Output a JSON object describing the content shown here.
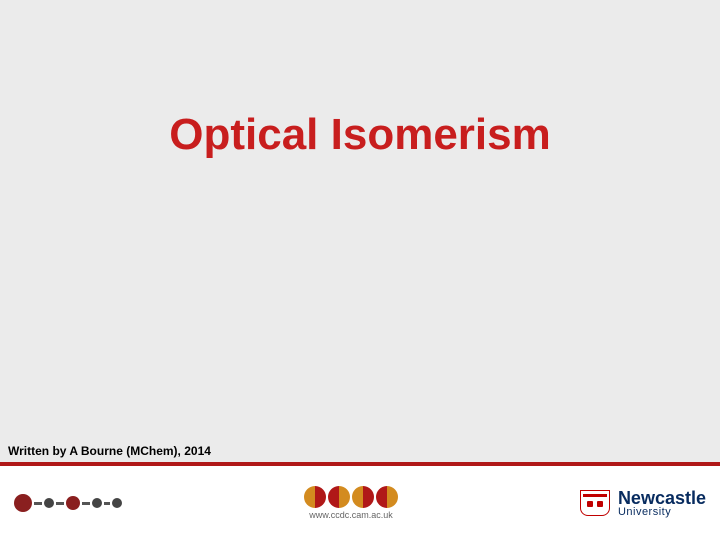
{
  "slide": {
    "background_color": "#ebebeb",
    "title": {
      "text": "Optical Isomerism",
      "color": "#c81e1e",
      "fontsize": 44,
      "font_weight": "bold"
    },
    "author_line": {
      "text": "Written by A Bourne (MChem), 2014",
      "color": "#000000",
      "fontsize": 12,
      "font_weight": "bold"
    },
    "divider_color": "#b01818"
  },
  "footer": {
    "background_color": "#ffffff",
    "molecule_logo": {
      "atoms": [
        {
          "color": "#8a1f1f",
          "size": 18
        },
        {
          "color": "#444444",
          "size": 10
        },
        {
          "color": "#8a1f1f",
          "size": 14
        },
        {
          "color": "#444444",
          "size": 10
        },
        {
          "color": "#444444",
          "size": 10
        }
      ],
      "bond_color": "#555555"
    },
    "ccdc_logo": {
      "shapes": [
        {
          "left": "#d38b1f",
          "right": "#b01818"
        },
        {
          "left": "#b01818",
          "right": "#d38b1f"
        },
        {
          "left": "#d38b1f",
          "right": "#b01818"
        },
        {
          "left": "#b01818",
          "right": "#d38b1f"
        }
      ],
      "url": "www.ccdc.cam.ac.uk",
      "url_color": "#666666"
    },
    "university_logo": {
      "name": "Newcastle",
      "subtitle": "University",
      "text_color": "#072b5f",
      "crest_border": "#c00000",
      "crest_accent": "#c00000"
    }
  }
}
